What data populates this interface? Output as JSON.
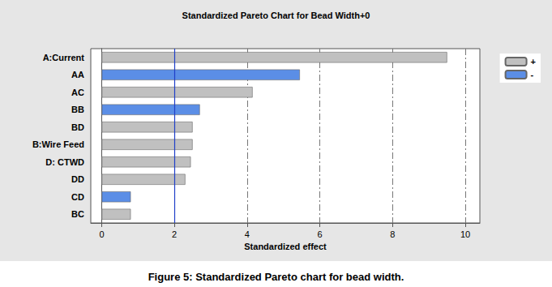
{
  "chart_data": {
    "type": "bar",
    "orientation": "horizontal",
    "title": "Standardized Pareto Chart for Bead Width+0",
    "caption": "Figure 5: Standardized Pareto chart for bead width.",
    "x_label": "Standardized effect",
    "categories": [
      "A:Current",
      "AA",
      "AC",
      "BB",
      "BD",
      "B:Wire Feed",
      "D: CTWD",
      "DD",
      "CD",
      "BC"
    ],
    "series": [
      {
        "name": "+",
        "color": "#c0c0c0",
        "values": [
          9.5,
          null,
          4.15,
          null,
          2.5,
          2.5,
          2.45,
          2.3,
          null,
          0.8
        ]
      },
      {
        "name": "-",
        "color": "#5b8ee6",
        "values": [
          null,
          5.45,
          null,
          2.7,
          null,
          null,
          null,
          null,
          0.8,
          null
        ]
      }
    ],
    "xlim": [
      -0.3,
      10.4
    ],
    "xticks": [
      0,
      2,
      4,
      6,
      8,
      10
    ],
    "grid": true,
    "legend": "upper right",
    "threshold": 2.0
  }
}
